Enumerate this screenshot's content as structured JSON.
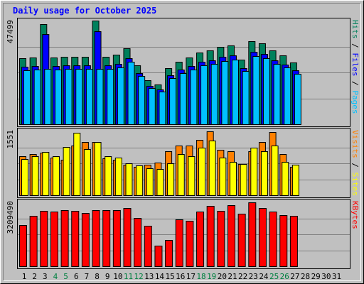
{
  "chart_data": [
    {
      "type": "bar",
      "title": "Daily usage for October 2025",
      "ylim": [
        0,
        47499
      ],
      "legend_separator": " / ",
      "series": [
        {
          "name": "Hits",
          "color": "#00805c",
          "values": [
            30255,
            30580,
            45870,
            30580,
            30905,
            30905,
            30905,
            47499,
            30905,
            31880,
            34810,
            27000,
            20170,
            18220,
            25700,
            28630,
            30580,
            32860,
            33830,
            35460,
            36110,
            29600,
            38060,
            37090,
            33830,
            31560,
            28300,
            0,
            null,
            null,
            null
          ]
        },
        {
          "name": "Files",
          "color": "#0000ff",
          "values": [
            26320,
            26600,
            41280,
            26600,
            26890,
            26890,
            26890,
            42750,
            26890,
            27740,
            30280,
            23490,
            17550,
            15850,
            22360,
            24910,
            26600,
            28590,
            29430,
            30850,
            31420,
            25750,
            33110,
            32270,
            29430,
            27460,
            24620,
            0,
            null,
            null,
            null
          ]
        },
        {
          "name": "Pages",
          "color": "#00c0ff",
          "values": [
            24810,
            25080,
            25370,
            25080,
            25340,
            25340,
            25340,
            25370,
            25340,
            26140,
            28540,
            22140,
            16540,
            14940,
            21070,
            23480,
            25080,
            26950,
            27740,
            29080,
            29610,
            24270,
            31210,
            30410,
            27740,
            25880,
            23210,
            0,
            null,
            null,
            null
          ]
        }
      ]
    },
    {
      "type": "bar",
      "ylim": [
        0,
        1551
      ],
      "legend_separator": " / ",
      "series": [
        {
          "name": "Visits",
          "color": "#ff8000",
          "values": [
            948,
            999,
            1034,
            913,
            862,
            1206,
            1292,
            1292,
            896,
            862,
            741,
            689,
            741,
            793,
            1068,
            1206,
            1206,
            1344,
            1551,
            1103,
            1068,
            758,
            1068,
            1292,
            1534,
            999,
            689,
            0,
            null,
            null,
            null
          ]
        },
        {
          "name": "Sites",
          "color": "#ffff00",
          "values": [
            879,
            948,
            1051,
            948,
            1172,
            1520,
            1120,
            1292,
            948,
            913,
            775,
            724,
            655,
            638,
            775,
            999,
            948,
            1154,
            1327,
            913,
            810,
            758,
            1154,
            1068,
            1206,
            810,
            741,
            0,
            null,
            null,
            null
          ]
        }
      ]
    },
    {
      "type": "bar",
      "ylim": [
        0,
        3209490
      ],
      "legend_separator": " / ",
      "categories": [
        "1",
        "2",
        "3",
        "4",
        "5",
        "6",
        "7",
        "8",
        "9",
        "10",
        "11",
        "12",
        "13",
        "14",
        "15",
        "16",
        "17",
        "18",
        "19",
        "20",
        "21",
        "22",
        "23",
        "24",
        "25",
        "26",
        "27",
        "28",
        "29",
        "30",
        "31"
      ],
      "weekend_indices": [
        3,
        4,
        10,
        11,
        17,
        18,
        24,
        25
      ],
      "weekend_label_color": "#008040",
      "label_color": "#000000",
      "series": [
        {
          "name": "KBytes",
          "color": "#ff0000",
          "values": [
            2068300,
            2531900,
            2781600,
            2745900,
            2817200,
            2781600,
            2674600,
            2817200,
            2817200,
            2817200,
            2924200,
            2424900,
            2032700,
            1034200,
            1319500,
            2353600,
            2282300,
            2745900,
            3031200,
            2781600,
            3066800,
            2638900,
            3209490,
            2924200,
            2745900,
            2567600,
            2531900,
            0,
            null,
            null,
            null
          ]
        }
      ]
    }
  ]
}
